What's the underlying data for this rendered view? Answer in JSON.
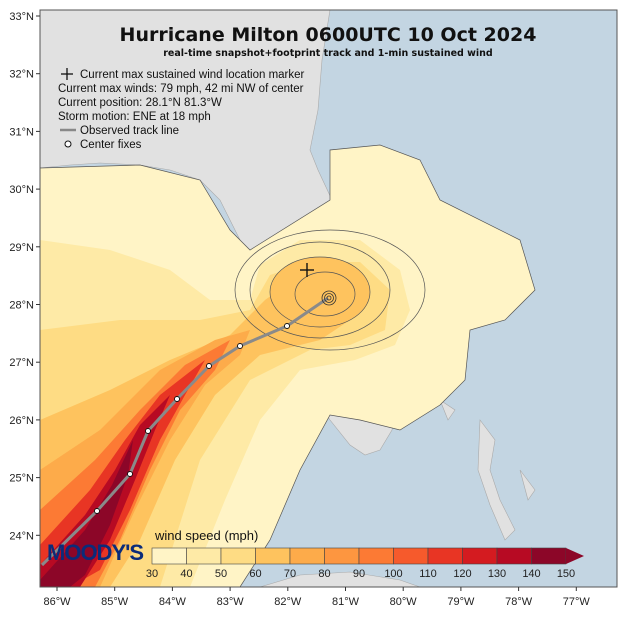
{
  "title": "Hurricane Milton 0600UTC 10 Oct 2024",
  "subtitle": "real-time snapshot+footprint track and 1-min sustained wind",
  "legend": {
    "marker": "Current max sustained wind location marker",
    "max_winds": "Current max winds: 79 mph, 42 mi NW of center",
    "position": "Current position: 28.1°N 81.3°W",
    "motion": "Storm motion: ENE at 18 mph",
    "track": "Observed track line",
    "fixes": "Center fixes"
  },
  "lat_ticks": [
    "33°N",
    "32°N",
    "31°N",
    "30°N",
    "29°N",
    "28°N",
    "27°N",
    "26°N",
    "25°N",
    "24°N"
  ],
  "lon_ticks": [
    "86°W",
    "85°W",
    "84°W",
    "83°W",
    "82°W",
    "81°W",
    "80°W",
    "79°W",
    "78°W",
    "77°W"
  ],
  "colorbar": {
    "label": "wind speed (mph)",
    "ticks": [
      "30",
      "40",
      "50",
      "60",
      "70",
      "80",
      "90",
      "100",
      "110",
      "120",
      "130",
      "140",
      "150"
    ],
    "colors": [
      "#fff4c6",
      "#feeaa6",
      "#fedc84",
      "#fec35e",
      "#fdab4a",
      "#fd9640",
      "#fc7a34",
      "#f65a2c",
      "#e83524",
      "#d41b20",
      "#b70a23",
      "#8c0628"
    ]
  },
  "logo": "MOODY'S",
  "colors": {
    "ocean": "#c3d5e2",
    "land": "#e1e1e1",
    "track": "#8a8a8a"
  }
}
